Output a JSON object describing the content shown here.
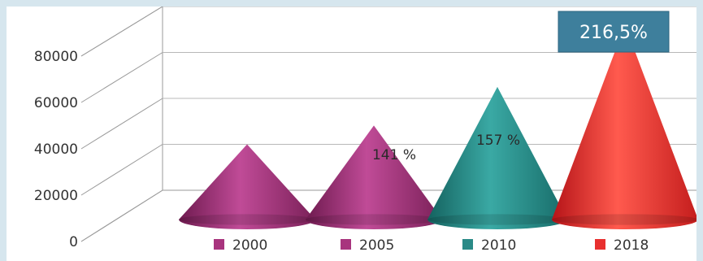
{
  "chart_data": {
    "type": "bar",
    "categories": [
      "2000",
      "2005",
      "2010",
      "2018"
    ],
    "values": [
      20000,
      28200,
      45000,
      72000
    ],
    "data_labels": [
      "",
      "141 %",
      "157 %",
      "216,5%"
    ],
    "ylim": [
      0,
      80000
    ],
    "yticks": [
      "0",
      "20000",
      "40000",
      "60000",
      "80000"
    ],
    "grid": true,
    "legend_position": "bottom",
    "colors": [
      "#a8347e",
      "#a8347e",
      "#2a8a87",
      "#e8302f"
    ],
    "highlight_color": "#3e7f9c"
  }
}
